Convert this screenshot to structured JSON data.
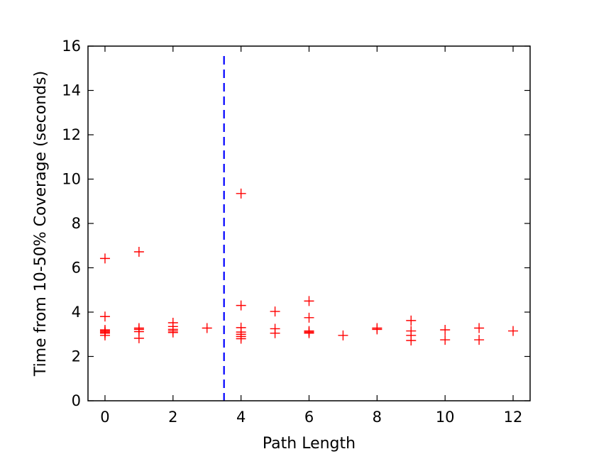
{
  "chart_data": {
    "type": "scatter",
    "title": "",
    "xlabel": "Path Length",
    "ylabel": "Time from 10-50% Coverage (seconds)",
    "xlim": [
      -0.5,
      12.5
    ],
    "ylim": [
      0,
      16
    ],
    "x_ticks": [
      0,
      2,
      4,
      6,
      8,
      10,
      12
    ],
    "y_ticks": [
      0,
      2,
      4,
      6,
      8,
      10,
      12,
      14,
      16
    ],
    "grid": false,
    "marker": "+",
    "colors": {
      "points": "#ff0000",
      "threshold_line": "#0000ff",
      "axes": "#000000"
    },
    "series": [
      {
        "points": [
          [
            0,
            6.42
          ],
          [
            0,
            3.8
          ],
          [
            0,
            3.2
          ],
          [
            0,
            3.15
          ],
          [
            0,
            3.1
          ],
          [
            0,
            3.05
          ],
          [
            0,
            2.95
          ],
          [
            1,
            6.72
          ],
          [
            1,
            3.28
          ],
          [
            1,
            3.22
          ],
          [
            1,
            3.12
          ],
          [
            1,
            2.82
          ],
          [
            2,
            3.52
          ],
          [
            2,
            3.35
          ],
          [
            2,
            3.22
          ],
          [
            2,
            3.15
          ],
          [
            2,
            3.08
          ],
          [
            3,
            3.28
          ],
          [
            4,
            9.35
          ],
          [
            4,
            4.3
          ],
          [
            4,
            3.3
          ],
          [
            4,
            3.1
          ],
          [
            4,
            3.0
          ],
          [
            4,
            2.9
          ],
          [
            4,
            2.8
          ],
          [
            5,
            4.03
          ],
          [
            5,
            3.25
          ],
          [
            5,
            3.05
          ],
          [
            6,
            4.5
          ],
          [
            6,
            3.75
          ],
          [
            6,
            3.15
          ],
          [
            6,
            3.1
          ],
          [
            6,
            3.05
          ],
          [
            7,
            2.95
          ],
          [
            8,
            3.28
          ],
          [
            8,
            3.22
          ],
          [
            9,
            3.62
          ],
          [
            9,
            3.15
          ],
          [
            9,
            2.95
          ],
          [
            9,
            2.72
          ],
          [
            10,
            3.2
          ],
          [
            10,
            2.75
          ],
          [
            11,
            3.28
          ],
          [
            11,
            2.75
          ],
          [
            12,
            3.15
          ]
        ]
      }
    ],
    "reference_lines": [
      {
        "orientation": "vertical",
        "x": 3.5,
        "style": "dashed",
        "color": "#0000ff"
      }
    ]
  }
}
